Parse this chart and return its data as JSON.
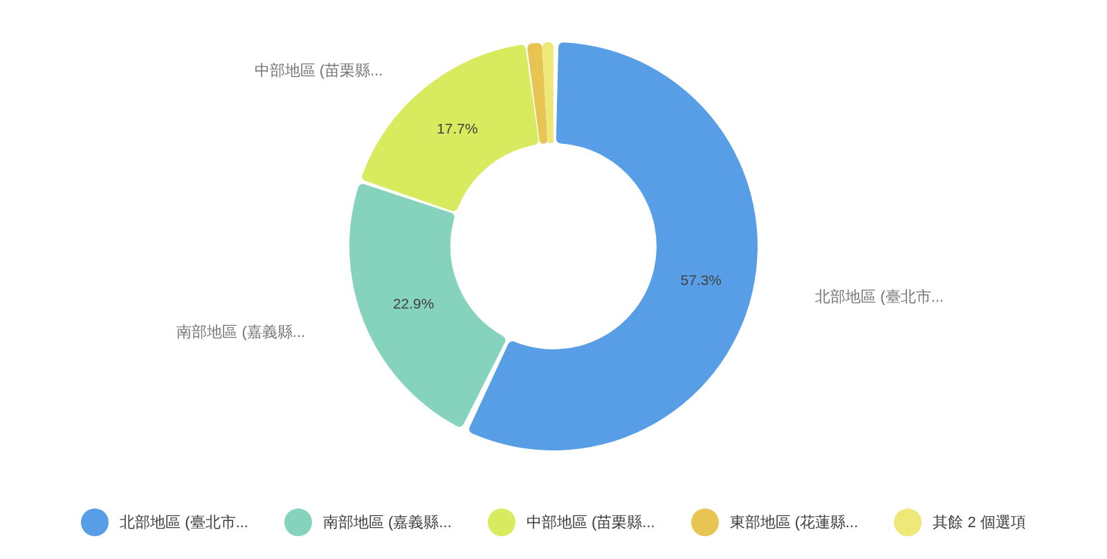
{
  "chart_data": {
    "type": "donut",
    "categories": [
      "北部地區 (臺北市...",
      "南部地區 (嘉義縣...",
      "中部地區 (苗栗縣...",
      "東部地區 (花蓮縣...",
      "其餘 2 個選項"
    ],
    "values": [
      57.3,
      22.9,
      17.7,
      1.2,
      0.9
    ],
    "colors": [
      "#579ee6",
      "#85d3bc",
      "#d8ea5e",
      "#e8c552",
      "#eee878"
    ],
    "value_labels": [
      "57.3%",
      "22.9%",
      "17.7%",
      null,
      null
    ],
    "legend": "bottom"
  }
}
